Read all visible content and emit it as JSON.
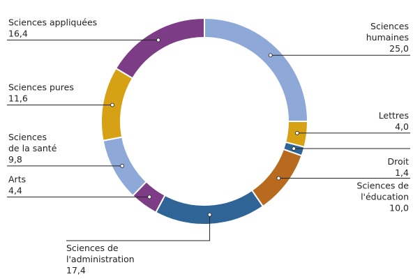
{
  "chart_data": {
    "type": "donut",
    "categories": [
      [
        "Sciences",
        "humaines"
      ],
      [
        "Lettres"
      ],
      [
        "Droit"
      ],
      [
        "Sciences de",
        "l'éducation"
      ],
      [
        "Sciences de",
        "l'administration"
      ],
      [
        "Arts"
      ],
      [
        "Sciences",
        "de la santé"
      ],
      [
        "Sciences pures"
      ],
      [
        "Sciences appliquées"
      ]
    ],
    "values": [
      25.0,
      4.0,
      1.4,
      10.0,
      17.4,
      4.4,
      9.8,
      11.6,
      16.4
    ],
    "value_labels": [
      "25,0",
      "4,0",
      "1,4",
      "10,0",
      "17,4",
      "4,4",
      "9,8",
      "11,6",
      "16,4"
    ],
    "colors": [
      "#8ea8d8",
      "#d6a115",
      "#2e6496",
      "#b86a1f",
      "#2e6496",
      "#7c3c86",
      "#8ea8d8",
      "#d6a115",
      "#7c3c86"
    ]
  }
}
